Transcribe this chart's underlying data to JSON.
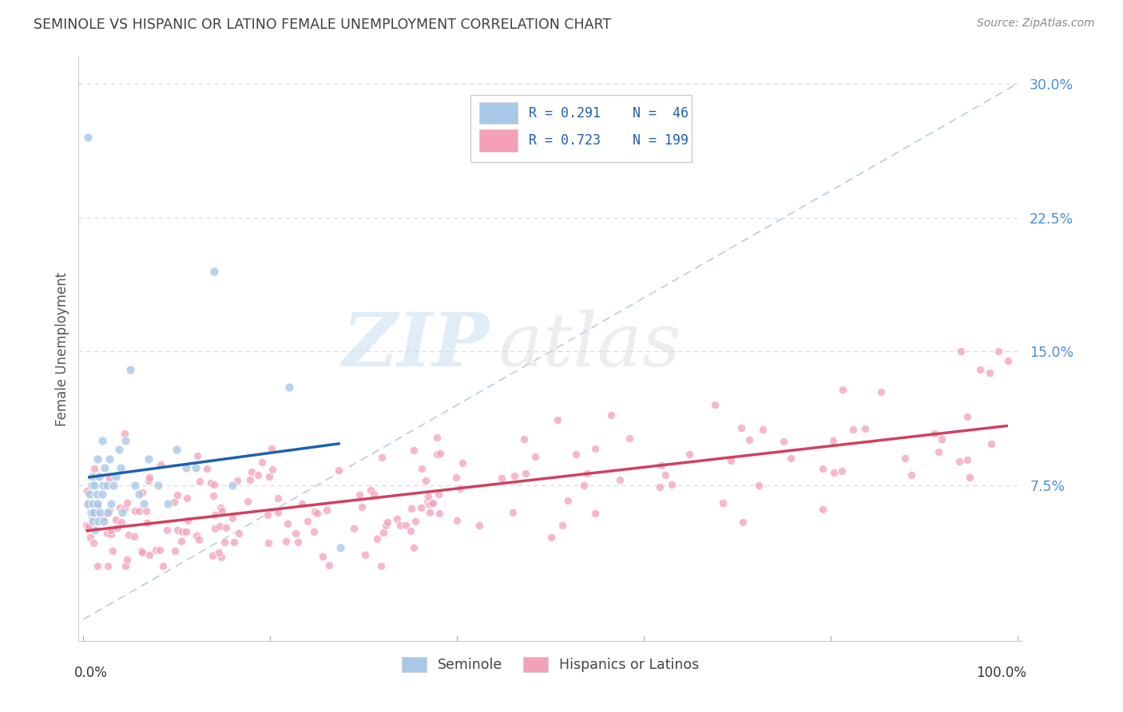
{
  "title": "SEMINOLE VS HISPANIC OR LATINO FEMALE UNEMPLOYMENT CORRELATION CHART",
  "source": "Source: ZipAtlas.com",
  "ylabel": "Female Unemployment",
  "watermark_zip": "ZIP",
  "watermark_atlas": "atlas",
  "blue_color": "#a8c8e8",
  "pink_color": "#f4a0b8",
  "blue_line_color": "#2060b0",
  "pink_line_color": "#d04060",
  "dashed_line_color": "#b0c8e0",
  "background_color": "#ffffff",
  "grid_color": "#d8d8d8",
  "title_color": "#404040",
  "ytick_color": "#4a90d9",
  "legend_text_color": "#2060b0",
  "legend_R1": "R = 0.291",
  "legend_N1": "N =  46",
  "legend_R2": "R = 0.723",
  "legend_N2": "N = 199"
}
